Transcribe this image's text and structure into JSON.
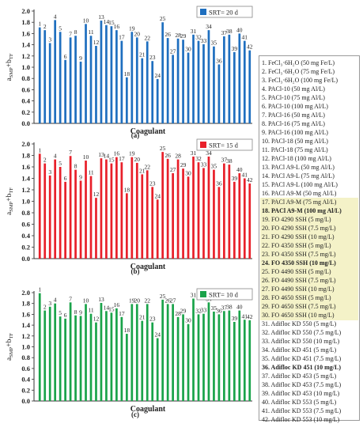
{
  "chart_data": [
    {
      "panel_label": "(a)",
      "type": "bar",
      "series_name": "SRT= 20 d",
      "color": "#1f6fbf",
      "ylabel": "a_SMP+b_TF",
      "xlabel": "Coagulant",
      "ylim": [
        0,
        2.0
      ],
      "yticks": [
        "0.0",
        "0.2",
        "0.4",
        "0.6",
        "0.8",
        "1.0",
        "1.2",
        "1.4",
        "1.6",
        "1.8",
        "2.0"
      ],
      "categories": [
        1,
        2,
        3,
        4,
        5,
        6,
        7,
        8,
        9,
        10,
        11,
        12,
        13,
        14,
        15,
        16,
        17,
        18,
        19,
        20,
        21,
        22,
        23,
        24,
        25,
        26,
        27,
        28,
        29,
        30,
        31,
        32,
        33,
        34,
        35,
        36,
        37,
        38,
        39,
        40,
        41,
        42
      ],
      "values": [
        1.71,
        1.66,
        1.43,
        1.84,
        1.63,
        1.13,
        1.53,
        1.56,
        1.1,
        1.77,
        1.56,
        1.38,
        1.83,
        1.75,
        1.73,
        1.66,
        1.47,
        0.82,
        1.63,
        1.53,
        1.16,
        1.46,
        1.11,
        0.79,
        1.8,
        1.52,
        1.22,
        1.51,
        1.49,
        1.26,
        1.58,
        1.47,
        1.41,
        1.66,
        1.37,
        1.05,
        1.55,
        1.58,
        1.27,
        1.6,
        1.47,
        1.3
      ]
    },
    {
      "panel_label": "(b)",
      "type": "bar",
      "series_name": "SRT= 15 d",
      "color": "#e8202a",
      "ylabel": "a_SMP+b_TF",
      "xlabel": "Coagulant",
      "ylim": [
        0,
        2.0
      ],
      "yticks": [
        "0.0",
        "0.2",
        "0.4",
        "0.6",
        "0.8",
        "1.0",
        "1.2",
        "1.4",
        "1.6",
        "1.8",
        "2.0"
      ],
      "categories": [
        1,
        2,
        3,
        4,
        5,
        6,
        7,
        8,
        9,
        10,
        11,
        12,
        13,
        14,
        15,
        16,
        17,
        18,
        19,
        20,
        21,
        22,
        23,
        24,
        25,
        26,
        27,
        28,
        29,
        30,
        31,
        32,
        33,
        34,
        35,
        36,
        37,
        38,
        39,
        40,
        41,
        42
      ],
      "values": [
        1.83,
        1.66,
        1.45,
        1.73,
        1.6,
        1.34,
        1.79,
        1.55,
        1.36,
        1.71,
        1.44,
        1.06,
        1.75,
        1.73,
        1.66,
        1.77,
        1.68,
        1.14,
        1.77,
        1.67,
        1.47,
        1.54,
        1.25,
        1.03,
        1.86,
        1.74,
        1.49,
        1.73,
        1.57,
        1.43,
        1.78,
        1.68,
        1.58,
        1.78,
        1.55,
        1.25,
        1.66,
        1.64,
        1.34,
        1.49,
        1.4,
        1.31
      ]
    },
    {
      "panel_label": "(c)",
      "type": "bar",
      "series_name": "SRT= 10 d",
      "color": "#1aa34a",
      "ylabel": "a_SMP+b_TF",
      "xlabel": "Coagulant",
      "ylim": [
        0,
        2.0
      ],
      "yticks": [
        "0.0",
        "0.2",
        "0.4",
        "0.6",
        "0.8",
        "1.0",
        "1.2",
        "1.4",
        "1.6",
        "1.8",
        "2.0"
      ],
      "categories": [
        1,
        2,
        3,
        4,
        5,
        6,
        7,
        8,
        9,
        10,
        11,
        12,
        13,
        14,
        15,
        16,
        17,
        18,
        19,
        20,
        21,
        22,
        23,
        24,
        25,
        26,
        27,
        28,
        29,
        30,
        31,
        32,
        33,
        34,
        35,
        36,
        37,
        38,
        39,
        40,
        41,
        42
      ],
      "values": [
        1.99,
        1.67,
        1.74,
        1.8,
        1.56,
        1.52,
        1.82,
        1.58,
        1.57,
        1.79,
        1.61,
        1.45,
        1.81,
        1.66,
        1.63,
        1.71,
        1.55,
        1.24,
        1.79,
        1.79,
        1.48,
        1.79,
        1.45,
        1.16,
        1.87,
        1.79,
        1.79,
        1.55,
        1.6,
        1.42,
        1.89,
        1.6,
        1.61,
        1.82,
        1.65,
        1.6,
        1.66,
        1.67,
        1.46,
        1.67,
        1.5,
        1.49
      ]
    }
  ],
  "legend_items": [
    "1. FeCl₃·6H₂O (50 mg Fe/L)",
    "2. FeCl₃·6H₂O (75 mg Fe/L)",
    "3. FeCl₃·6H₂O (100 mg Fe/L)",
    "4. PACl-10 (50 mg Al/L)",
    "5. PACl-10 (75 mg Al/L)",
    "6. PACl-10 (100 mg Al/L)",
    "7. PACl-16 (50 mg Al/L)",
    "8. PACl-16 (75 mg Al/L)",
    "9. PACl-16 (100 mg Al/L)",
    "10. PACl-18 (50 mg Al/L)",
    "11. PACl-18 (75 mg Al/L)",
    "12. PACl-18 (100 mg Al/L)",
    "13. PACl A9-L (50 mg Al/L)",
    "14. PACl A9-L (75 mg Al/L)",
    "15. PACl A9-L (100 mg Al/L)",
    "16. PACl A9-M (50 mg Al/L)",
    "17. PACl A9-M (75 mg Al/L)",
    "18. PACl A9-M (100 mg Al/L)",
    "19. FO 4290 SSH (5 mg/L)",
    "20. FO 4290 SSH (7.5 mg/L)",
    "21. FO 4290 SSH (10 mg/L)",
    "22. FO 4350 SSH (5 mg/L)",
    "23. FO 4350 SSH (7.5 mg/L)",
    "24. FO 4350 SSH (10 mg/L)",
    "25. FO 4490 SSH (5 mg/L)",
    "26. FO 4490 SSH (7.5 mg/L)",
    "27. FO 4490 SSH (10 mg/L)",
    "28. FO 4650 SSH (5 mg/L)",
    "29. FO 4650 SSH (7.5 mg/L)",
    "30. FO 4650 SSH (10 mg/L)",
    "31. Adifloc KD 550 (5 mg/L)",
    "32. Adifloc KD 550 (7.5 mg/L)",
    "33. Adifloc KD 550 (10 mg/L)",
    "34. Adifloc KD 451 (5 mg/L)",
    "35. Adifloc KD 451 (7.5 mg/L)",
    "36. Adifloc KD 451 (10 mg/L)",
    "37. Adifloc KD 453 (5 mg/L)",
    "38. Adifloc KD 453 (7.5 mg/L)",
    "39. Adifloc KD 453 (10 mg/L)",
    "40. Adifloc KD 553 (5 mg/L)",
    "41. Adifloc KD 553 (7.5 mg/L)",
    "42. Adifloc KD 553 (10 mg/L)"
  ],
  "legend_bold_indices": [
    17,
    23,
    35
  ],
  "legend_highlight_range": [
    18,
    29
  ]
}
